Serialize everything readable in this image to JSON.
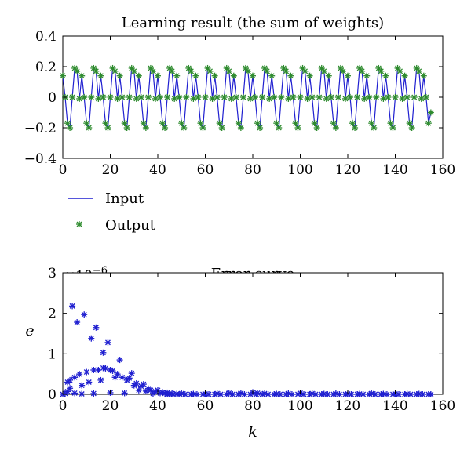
{
  "chart_data": [
    {
      "type": "line",
      "title": "Learning result (the sum of weights)",
      "xlabel": "",
      "ylabel": "",
      "xlim": [
        0,
        160
      ],
      "ylim": [
        -0.4,
        0.4
      ],
      "xticks": [
        "0",
        "20",
        "40",
        "60",
        "80",
        "100",
        "120",
        "140",
        "160"
      ],
      "yticks": [
        "−0.4",
        "−0.2",
        "0",
        "0.2",
        "0.4"
      ],
      "grid": false,
      "legend_position": "below-left",
      "series": [
        {
          "name": "Input",
          "style": "line",
          "color": "#1f1fd0",
          "x_range": [
            0,
            155
          ],
          "y_pattern": [
            0.14,
            0.0,
            -0.17,
            -0.2,
            0.0,
            0.19,
            0.17,
            -0.01
          ],
          "y_end": -0.1
        },
        {
          "name": "Output",
          "style": "marker",
          "color": "#2e8b2e",
          "x_range": [
            0,
            155
          ],
          "y_pattern": [
            0.14,
            0.0,
            -0.17,
            -0.2,
            0.0,
            0.19,
            0.17,
            -0.01
          ],
          "y_end": -0.1
        }
      ]
    },
    {
      "type": "scatter",
      "title": "Error curve",
      "xlabel": "k",
      "ylabel": "e",
      "multiplier": "×10",
      "multiplier_exp": "−6",
      "xlim": [
        0,
        160
      ],
      "ylim": [
        0,
        3
      ],
      "xticks": [
        "0",
        "20",
        "40",
        "60",
        "80",
        "100",
        "120",
        "140",
        "160"
      ],
      "yticks": [
        "0",
        "1",
        "2",
        "3"
      ],
      "grid": false,
      "series": [
        {
          "style": "marker",
          "color": "#1f1fd0",
          "points": [
            [
              0,
              0.0
            ],
            [
              1,
              0.02
            ],
            [
              2,
              0.07
            ],
            [
              2,
              0.3
            ],
            [
              3,
              0.35
            ],
            [
              3,
              0.15
            ],
            [
              4,
              2.18
            ],
            [
              5,
              0.42
            ],
            [
              5,
              0.03
            ],
            [
              6,
              1.78
            ],
            [
              7,
              0.5
            ],
            [
              8,
              0.22
            ],
            [
              8,
              0.01
            ],
            [
              9,
              1.97
            ],
            [
              10,
              0.55
            ],
            [
              11,
              0.3
            ],
            [
              12,
              1.38
            ],
            [
              13,
              0.6
            ],
            [
              13,
              0.02
            ],
            [
              14,
              1.65
            ],
            [
              15,
              0.6
            ],
            [
              16,
              0.35
            ],
            [
              17,
              0.65
            ],
            [
              17,
              1.03
            ],
            [
              18,
              0.64
            ],
            [
              19,
              1.28
            ],
            [
              20,
              0.6
            ],
            [
              20,
              0.04
            ],
            [
              21,
              0.58
            ],
            [
              22,
              0.42
            ],
            [
              23,
              0.5
            ],
            [
              24,
              0.85
            ],
            [
              25,
              0.42
            ],
            [
              26,
              0.03
            ],
            [
              27,
              0.35
            ],
            [
              28,
              0.4
            ],
            [
              29,
              0.52
            ],
            [
              30,
              0.22
            ],
            [
              31,
              0.27
            ],
            [
              32,
              0.1
            ],
            [
              33,
              0.2
            ],
            [
              34,
              0.25
            ],
            [
              35,
              0.08
            ],
            [
              36,
              0.14
            ],
            [
              37,
              0.1
            ],
            [
              38,
              0.02
            ],
            [
              39,
              0.07
            ],
            [
              40,
              0.1
            ],
            [
              41,
              0.03
            ],
            [
              42,
              0.05
            ],
            [
              43,
              0.02
            ],
            [
              44,
              0.04
            ],
            [
              45,
              0.01
            ],
            [
              46,
              0.02
            ],
            [
              48,
              0.01
            ],
            [
              50,
              0.02
            ],
            [
              55,
              0.01
            ],
            [
              60,
              0.01
            ],
            [
              65,
              0.02
            ],
            [
              70,
              0.03
            ],
            [
              75,
              0.03
            ],
            [
              80,
              0.05
            ],
            [
              82,
              0.03
            ],
            [
              85,
              0.02
            ],
            [
              90,
              0.01
            ],
            [
              95,
              0.02
            ],
            [
              100,
              0.03
            ],
            [
              105,
              0.02
            ],
            [
              110,
              0.01
            ],
            [
              115,
              0.02
            ],
            [
              120,
              0.01
            ],
            [
              125,
              0.01
            ],
            [
              130,
              0.02
            ],
            [
              135,
              0.01
            ],
            [
              140,
              0.01
            ],
            [
              145,
              0.01
            ],
            [
              150,
              0.01
            ],
            [
              155,
              0.0
            ]
          ],
          "dense_baseline": {
            "x_range": [
              44,
              155
            ],
            "y": 0.0
          }
        }
      ]
    }
  ]
}
